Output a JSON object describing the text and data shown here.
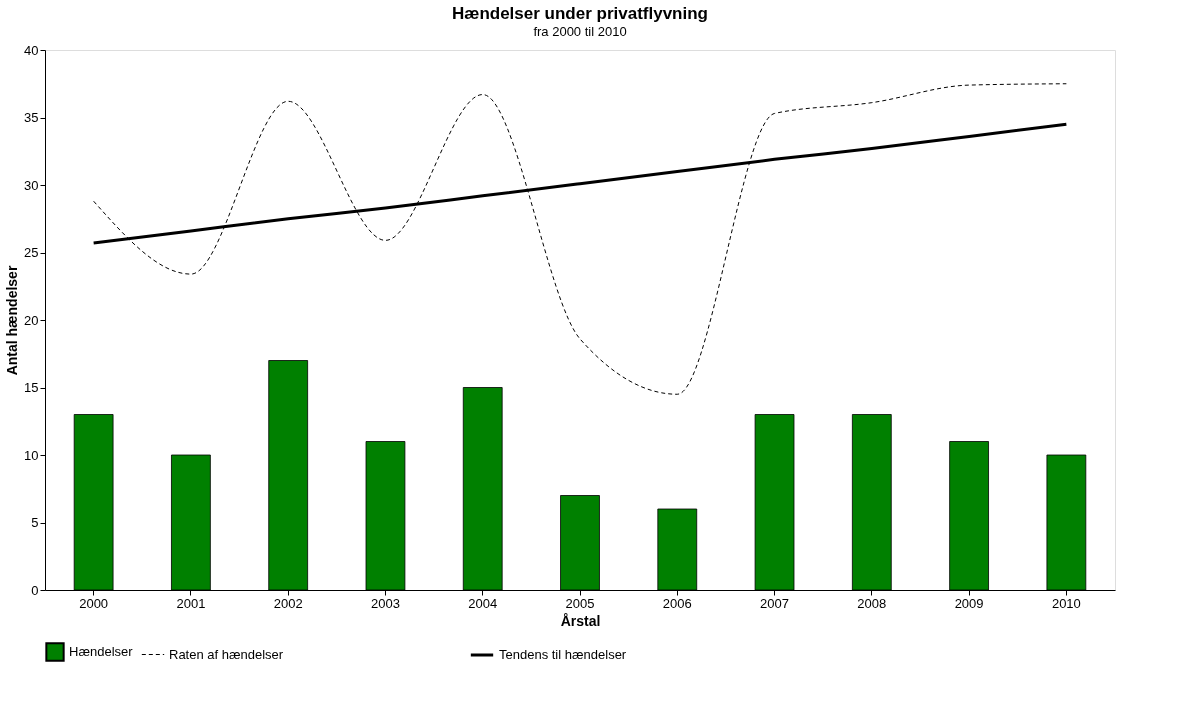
{
  "chart_data": {
    "type": "bar",
    "title": "Hændelser under privatflyvning",
    "subtitle": "fra 2000 til 2010",
    "xlabel": "Årstal",
    "ylabel": "Antal hændelser",
    "categories": [
      "2000",
      "2001",
      "2002",
      "2003",
      "2004",
      "2005",
      "2006",
      "2007",
      "2008",
      "2009",
      "2010"
    ],
    "series": [
      {
        "name": "Hændelser",
        "type": "bar",
        "color": "#008000",
        "values": [
          13,
          10,
          17,
          11,
          15,
          7,
          6,
          13,
          13,
          11,
          10
        ]
      },
      {
        "name": "Raten af hændelser",
        "type": "line",
        "line_style": "dashed",
        "color": "#000000",
        "values": [
          28.8,
          23.4,
          36.2,
          25.9,
          36.7,
          18.6,
          14.5,
          35.3,
          36.1,
          37.4,
          37.5
        ]
      },
      {
        "name": "Tendens til hændelser",
        "type": "line",
        "line_style": "solid",
        "color": "#000000",
        "values": [
          25.7,
          26.6,
          27.5,
          28.3,
          29.2,
          30.1,
          31.0,
          31.9,
          32.7,
          33.6,
          34.5
        ]
      }
    ],
    "ylim": [
      0,
      40
    ],
    "yticks": [
      0,
      5,
      10,
      15,
      20,
      25,
      30,
      35,
      40
    ],
    "grid": false,
    "legend": "bottom"
  }
}
